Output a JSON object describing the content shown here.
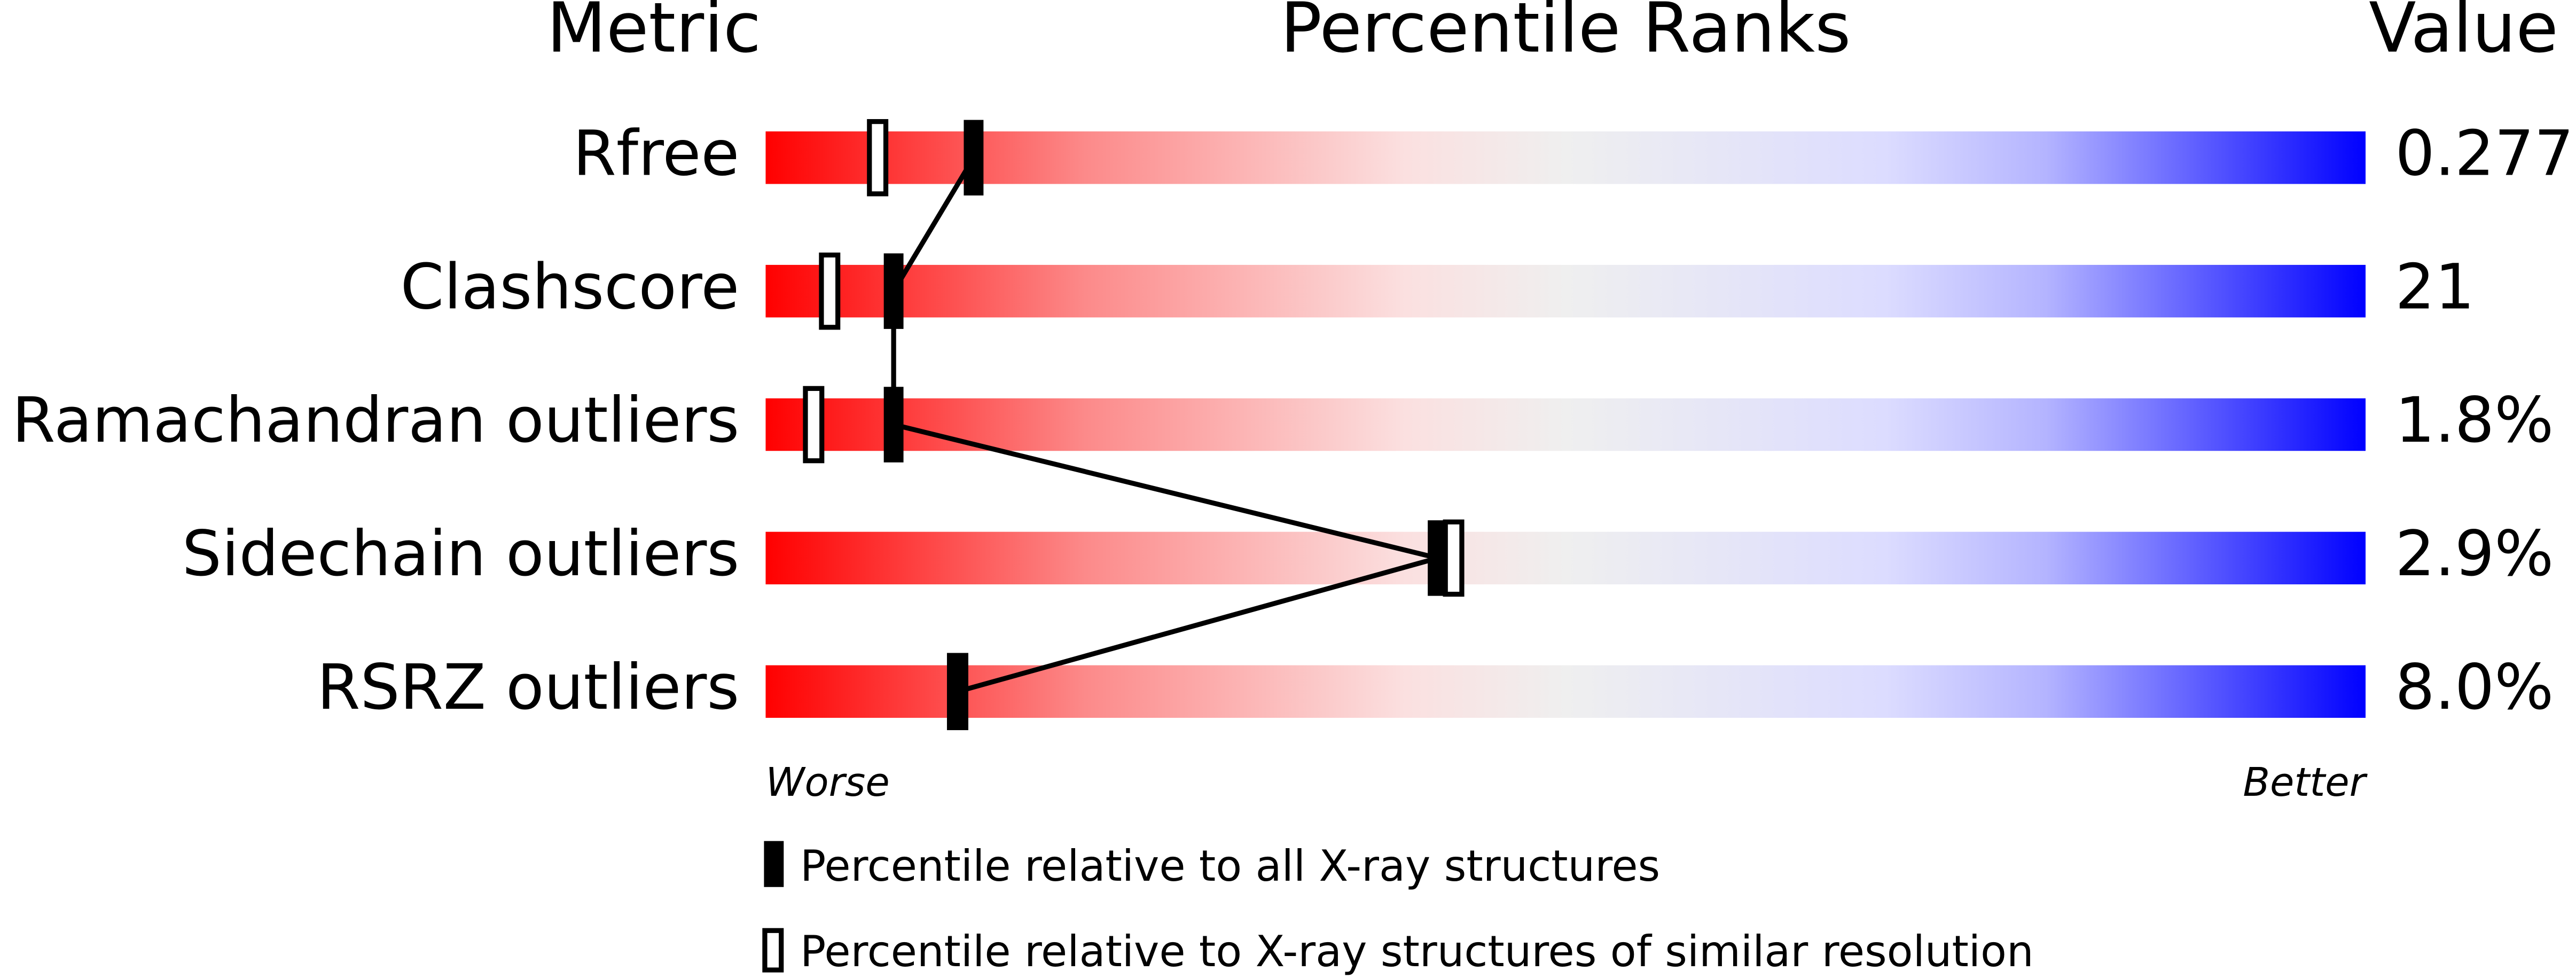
{
  "chart_data": {
    "type": "percentile",
    "headers": {
      "metric": "Metric",
      "ranks": "Percentile Ranks",
      "value": "Value"
    },
    "categories": [
      "Rfree",
      "Clashscore",
      "Ramachandran outliers",
      "Sidechain outliers",
      "RSRZ outliers"
    ],
    "metric_values": [
      "0.277",
      "21",
      "1.8%",
      "2.9%",
      "8.0%"
    ],
    "xlim": [
      0,
      100
    ],
    "series": [
      {
        "name": "Percentile relative to all X-ray structures",
        "color": "#000000",
        "values": [
          13,
          8,
          8,
          42,
          12
        ]
      },
      {
        "name": "Percentile relative to X-ray structures of similar resolution",
        "color": "#000000",
        "values": [
          7,
          4,
          3,
          43,
          12
        ]
      }
    ],
    "worse": "Worse",
    "better": "Better"
  }
}
